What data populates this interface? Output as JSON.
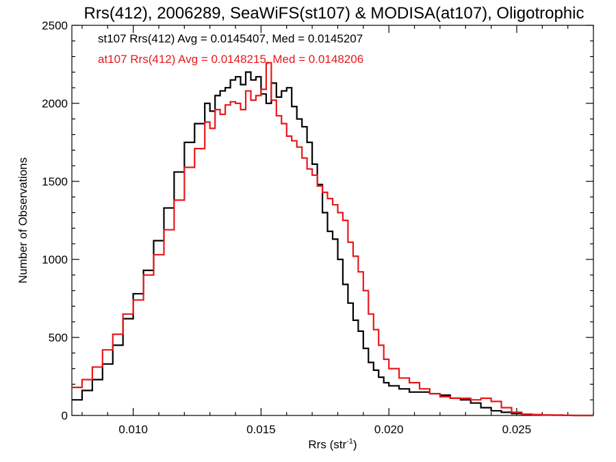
{
  "chart_data": {
    "type": "line",
    "title": "Rrs(412), 2006289, SeaWiFS(st107) & MODISA(at107), Oligotrophic",
    "xlabel": "Rrs (str",
    "xlabel_sup": "-1",
    "xlabel_close": ")",
    "ylabel": "Number of Observations",
    "xlim": [
      0.0076,
      0.028
    ],
    "ylim": [
      0,
      2500
    ],
    "x_ticks": [
      0.01,
      0.015,
      0.02,
      0.025
    ],
    "x_tick_labels": [
      "0.010",
      "0.015",
      "0.020",
      "0.025"
    ],
    "y_ticks": [
      0,
      500,
      1000,
      1500,
      2000,
      2500
    ],
    "y_tick_labels": [
      "0",
      "500",
      "1000",
      "1500",
      "2000",
      "2500"
    ],
    "grid": false,
    "annotations": [
      {
        "text": "st107 Rrs(412) Avg = 0.0145407, Med = 0.0145207",
        "color": "#000000"
      },
      {
        "text": "at107 Rrs(412) Avg = 0.0148215, Med = 0.0148206",
        "color": "#e8161a"
      }
    ],
    "series": [
      {
        "color": "#000000",
        "x": [
          0.0076,
          0.008,
          0.0084,
          0.0088,
          0.0092,
          0.0096,
          0.01,
          0.0104,
          0.0108,
          0.0112,
          0.0116,
          0.012,
          0.0124,
          0.0128,
          0.013,
          0.0132,
          0.0134,
          0.0136,
          0.0138,
          0.014,
          0.0142,
          0.0144,
          0.0146,
          0.0148,
          0.015,
          0.0152,
          0.0154,
          0.0156,
          0.0158,
          0.016,
          0.0162,
          0.0164,
          0.0166,
          0.0168,
          0.017,
          0.0172,
          0.0174,
          0.0176,
          0.0178,
          0.018,
          0.0182,
          0.0184,
          0.0186,
          0.0188,
          0.019,
          0.0192,
          0.0194,
          0.0196,
          0.0198,
          0.02,
          0.0204,
          0.0208,
          0.0212,
          0.0216,
          0.022,
          0.0224,
          0.0228,
          0.0232,
          0.0236,
          0.024,
          0.0244,
          0.0248,
          0.0252,
          0.0256,
          0.026,
          0.0264,
          0.0268,
          0.0272,
          0.0276,
          0.028
        ],
        "y": [
          100,
          160,
          230,
          330,
          450,
          620,
          780,
          930,
          1120,
          1330,
          1560,
          1750,
          1870,
          2000,
          1950,
          2050,
          2080,
          2100,
          2150,
          2170,
          2120,
          2200,
          2150,
          2170,
          2060,
          2000,
          2130,
          2040,
          2080,
          2100,
          1980,
          1900,
          1850,
          1750,
          1610,
          1480,
          1300,
          1180,
          1130,
          1000,
          840,
          720,
          610,
          540,
          430,
          340,
          290,
          245,
          210,
          190,
          170,
          150,
          150,
          140,
          130,
          110,
          100,
          80,
          50,
          30,
          20,
          12,
          8,
          5,
          3,
          2,
          1,
          0,
          0,
          0
        ]
      },
      {
        "color": "#e8161a",
        "x": [
          0.0076,
          0.008,
          0.0084,
          0.0088,
          0.0092,
          0.0096,
          0.01,
          0.0104,
          0.0108,
          0.0112,
          0.0116,
          0.012,
          0.0124,
          0.0128,
          0.013,
          0.0132,
          0.0134,
          0.0136,
          0.0138,
          0.014,
          0.0142,
          0.0144,
          0.0146,
          0.0148,
          0.015,
          0.0152,
          0.0154,
          0.0156,
          0.0158,
          0.016,
          0.0162,
          0.0164,
          0.0166,
          0.0168,
          0.017,
          0.0172,
          0.0174,
          0.0176,
          0.0178,
          0.018,
          0.0182,
          0.0184,
          0.0186,
          0.0188,
          0.019,
          0.0192,
          0.0194,
          0.0196,
          0.0198,
          0.02,
          0.0204,
          0.0208,
          0.0212,
          0.0216,
          0.022,
          0.0224,
          0.0228,
          0.0232,
          0.0236,
          0.024,
          0.0244,
          0.0248,
          0.0252,
          0.0256,
          0.026,
          0.0264,
          0.0268,
          0.0272,
          0.0276,
          0.028
        ],
        "y": [
          180,
          230,
          310,
          420,
          520,
          650,
          740,
          900,
          1030,
          1190,
          1380,
          1590,
          1710,
          1880,
          1840,
          1960,
          1930,
          1990,
          2010,
          2000,
          1960,
          2080,
          2020,
          2050,
          2090,
          2260,
          2020,
          1920,
          1870,
          1790,
          1760,
          1720,
          1650,
          1580,
          1540,
          1470,
          1430,
          1390,
          1350,
          1300,
          1250,
          1110,
          1020,
          920,
          800,
          650,
          550,
          450,
          360,
          300,
          240,
          210,
          170,
          140,
          120,
          110,
          110,
          100,
          110,
          90,
          50,
          20,
          8,
          5,
          3,
          2,
          1,
          0,
          0,
          0
        ]
      }
    ]
  }
}
